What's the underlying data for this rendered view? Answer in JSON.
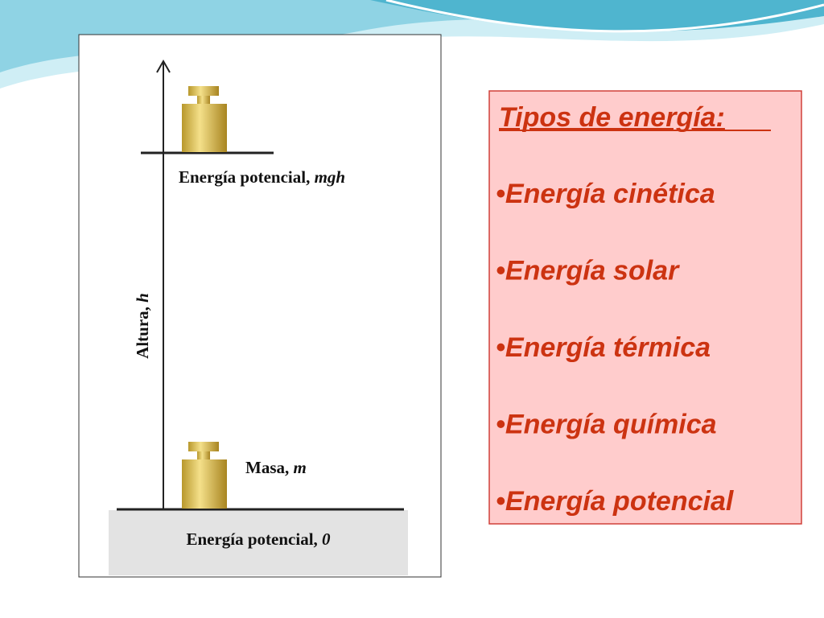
{
  "figure": {
    "top_label": {
      "text": "Energía potencial,",
      "var": "mgh"
    },
    "height_label": {
      "text": "Altura,",
      "var": "h"
    },
    "mass_label": {
      "text": "Masa,",
      "var": "m"
    },
    "ground_label": {
      "text": "Energía potencial,",
      "var": "0"
    }
  },
  "box": {
    "title": "Tipos de energía:",
    "items": [
      "•Energía cinética",
      "•Energía solar",
      "•Energía térmica",
      "•Energía química",
      "•Energía potencial"
    ]
  }
}
